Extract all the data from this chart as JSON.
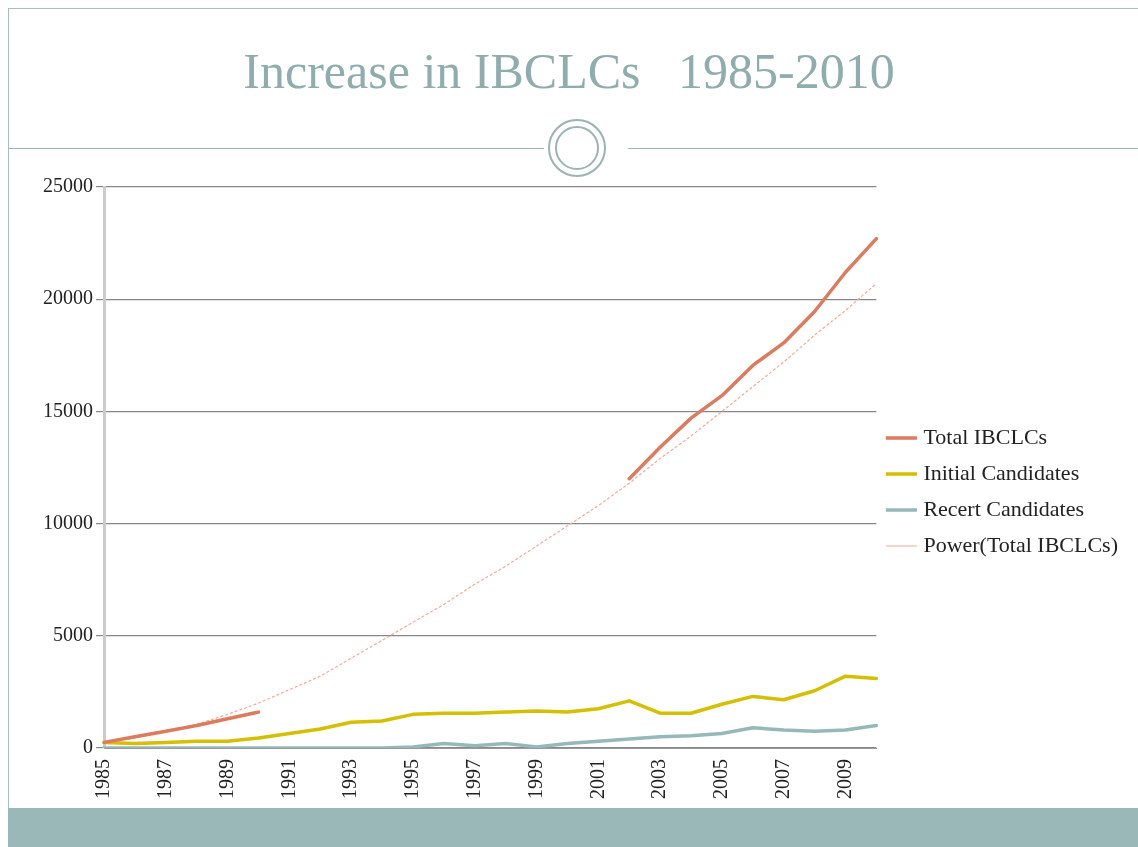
{
  "chart_data": {
    "type": "line",
    "title": "Increase in IBCLCs   1985-2010",
    "categories": [
      "1985",
      null,
      "1987",
      null,
      "1989",
      null,
      "1991",
      null,
      "1993",
      null,
      "1995",
      null,
      "1997",
      null,
      "1999",
      null,
      "2001",
      null,
      "2003",
      null,
      "2005",
      null,
      "2007",
      null,
      "2009",
      null
    ],
    "series": [
      {
        "name": "Total IBCLCs",
        "color": "#dc7b5e",
        "values": [
          250,
          500,
          750,
          1000,
          1300,
          1600,
          null,
          null,
          null,
          null,
          null,
          null,
          null,
          null,
          null,
          null,
          null,
          12000,
          13400,
          14700,
          15700,
          17050,
          18050,
          19450,
          21200,
          22700
        ]
      },
      {
        "name": "Initial Candidates",
        "color": "#d4bf00",
        "values": [
          250,
          200,
          250,
          300,
          300,
          450,
          650,
          850,
          1150,
          1200,
          1500,
          1550,
          1550,
          1600,
          1650,
          1600,
          1750,
          2100,
          1550,
          1550,
          1950,
          2300,
          2150,
          2550,
          3200,
          3100
        ]
      },
      {
        "name": "Recert Candidates",
        "color": "#96b8b8",
        "values": [
          0,
          0,
          0,
          0,
          0,
          0,
          0,
          0,
          0,
          0,
          50,
          200,
          100,
          200,
          50,
          200,
          300,
          400,
          500,
          550,
          650,
          900,
          800,
          750,
          800,
          1000
        ]
      },
      {
        "name": "Power(Total IBCLCs)",
        "color": "#f4a898",
        "line_style": "dotted",
        "values": [
          250,
          450,
          700,
          1050,
          1500,
          2000,
          2600,
          3200,
          4000,
          4800,
          5600,
          6400,
          7300,
          8100,
          9000,
          9900,
          10800,
          11800,
          12900,
          13900,
          15000,
          16100,
          17200,
          18400,
          19500,
          20700
        ]
      }
    ],
    "ylim": [
      0,
      25000
    ],
    "yticks": [
      0,
      5000,
      10000,
      15000,
      20000,
      25000
    ],
    "grid": "y",
    "legend": "right",
    "marker": "none",
    "line_style": "solid"
  }
}
